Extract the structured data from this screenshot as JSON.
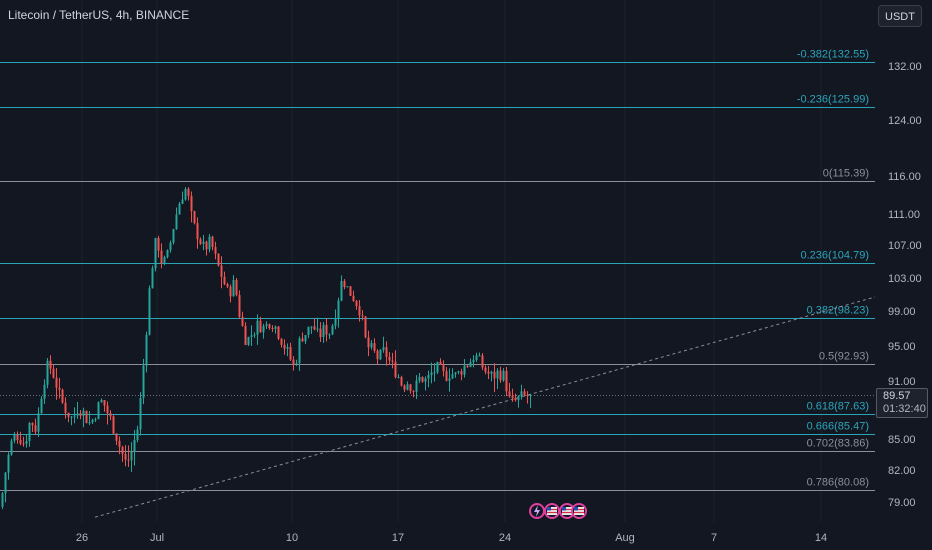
{
  "header": {
    "symbol_title": "Litecoin / TetherUS, 4h, BINANCE",
    "currency_button": "USDT"
  },
  "price_label": {
    "last": "89.57",
    "countdown": "01:32:40"
  },
  "colors": {
    "background": "#131722",
    "up": "#26a69a",
    "down": "#ef5350",
    "fib_teal": "#2aa5b8",
    "fib_gray": "#8a8e98",
    "text": "#d1d4dc"
  },
  "icons": [
    "lightning-icon",
    "us-flag-icon",
    "us-flag-icon",
    "us-flag-icon"
  ],
  "chart_data": {
    "type": "candlestick",
    "title": "Litecoin / TetherUS, 4h, BINANCE",
    "x_ticks": [
      "26",
      "Jul",
      "10",
      "17",
      "24",
      "Aug",
      "7",
      "14"
    ],
    "y_ticks": [
      "132.00",
      "124.00",
      "116.00",
      "111.00",
      "107.00",
      "103.00",
      "99.00",
      "95.00",
      "91.00",
      "85.00",
      "82.00",
      "79.00"
    ],
    "fib_levels": [
      {
        "label": "-0.382(132.55)",
        "value": 132.55,
        "color": "teal"
      },
      {
        "label": "-0.236(125.99)",
        "value": 125.99,
        "color": "teal"
      },
      {
        "label": "0(115.39)",
        "value": 115.39,
        "color": "gray"
      },
      {
        "label": "0.236(104.79)",
        "value": 104.79,
        "color": "teal"
      },
      {
        "label": "0.382(98.23)",
        "value": 98.23,
        "color": "teal"
      },
      {
        "label": "0.5(92.93)",
        "value": 92.93,
        "color": "gray"
      },
      {
        "label": "0.618(87.63)",
        "value": 87.63,
        "color": "teal"
      },
      {
        "label": "0.666(85.47)",
        "value": 85.47,
        "color": "teal"
      },
      {
        "label": "0.702(83.86)",
        "value": 83.86,
        "color": "gray"
      },
      {
        "label": "0.786(80.08)",
        "value": 80.08,
        "color": "gray"
      }
    ],
    "last_price": 89.57,
    "close_path": [
      [
        0,
        78.5
      ],
      [
        6,
        82.5
      ],
      [
        12,
        85.0
      ],
      [
        18,
        85.5
      ],
      [
        24,
        84.5
      ],
      [
        30,
        87.0
      ],
      [
        36,
        86.0
      ],
      [
        42,
        90.5
      ],
      [
        48,
        93.0
      ],
      [
        54,
        91.5
      ],
      [
        60,
        89.0
      ],
      [
        66,
        88.0
      ],
      [
        72,
        87.0
      ],
      [
        78,
        88.5
      ],
      [
        84,
        87.5
      ],
      [
        90,
        86.5
      ],
      [
        96,
        88.0
      ],
      [
        102,
        89.0
      ],
      [
        108,
        87.5
      ],
      [
        114,
        86.0
      ],
      [
        120,
        84.0
      ],
      [
        126,
        82.5
      ],
      [
        132,
        84.0
      ],
      [
        138,
        86.5
      ],
      [
        144,
        94.0
      ],
      [
        150,
        103.0
      ],
      [
        156,
        108.0
      ],
      [
        162,
        104.5
      ],
      [
        168,
        106.0
      ],
      [
        174,
        110.0
      ],
      [
        180,
        113.0
      ],
      [
        186,
        114.5
      ],
      [
        192,
        110.0
      ],
      [
        198,
        108.0
      ],
      [
        204,
        106.5
      ],
      [
        210,
        107.5
      ],
      [
        216,
        105.0
      ],
      [
        222,
        103.0
      ],
      [
        228,
        101.0
      ],
      [
        234,
        102.5
      ],
      [
        240,
        98.0
      ],
      [
        246,
        95.5
      ],
      [
        252,
        96.5
      ],
      [
        258,
        97.5
      ],
      [
        264,
        97.0
      ],
      [
        270,
        98.0
      ],
      [
        276,
        97.0
      ],
      [
        282,
        95.5
      ],
      [
        288,
        94.0
      ],
      [
        294,
        92.5
      ],
      [
        300,
        96.0
      ],
      [
        306,
        96.5
      ],
      [
        312,
        97.5
      ],
      [
        318,
        96.0
      ],
      [
        324,
        97.0
      ],
      [
        330,
        96.5
      ],
      [
        336,
        99.5
      ],
      [
        342,
        103.0
      ],
      [
        348,
        101.5
      ],
      [
        354,
        100.5
      ],
      [
        360,
        99.0
      ],
      [
        366,
        95.0
      ],
      [
        372,
        94.5
      ],
      [
        378,
        93.5
      ],
      [
        384,
        94.5
      ],
      [
        390,
        93.0
      ],
      [
        396,
        92.0
      ],
      [
        402,
        90.5
      ],
      [
        408,
        91.0
      ],
      [
        414,
        90.0
      ],
      [
        420,
        91.5
      ],
      [
        426,
        91.0
      ],
      [
        432,
        92.0
      ],
      [
        438,
        92.5
      ],
      [
        444,
        91.5
      ],
      [
        450,
        92.0
      ],
      [
        456,
        91.5
      ],
      [
        462,
        92.5
      ],
      [
        468,
        93.0
      ],
      [
        474,
        94.0
      ],
      [
        480,
        93.0
      ],
      [
        486,
        92.0
      ],
      [
        492,
        91.5
      ],
      [
        498,
        92.0
      ],
      [
        504,
        91.5
      ],
      [
        510,
        88.5
      ],
      [
        516,
        89.0
      ],
      [
        522,
        89.3
      ],
      [
        528,
        89.5
      ],
      [
        532,
        89.57
      ]
    ],
    "trendline": {
      "from": [
        95,
        77.4
      ],
      "to": [
        875,
        100.7
      ],
      "style": "dashed"
    }
  }
}
